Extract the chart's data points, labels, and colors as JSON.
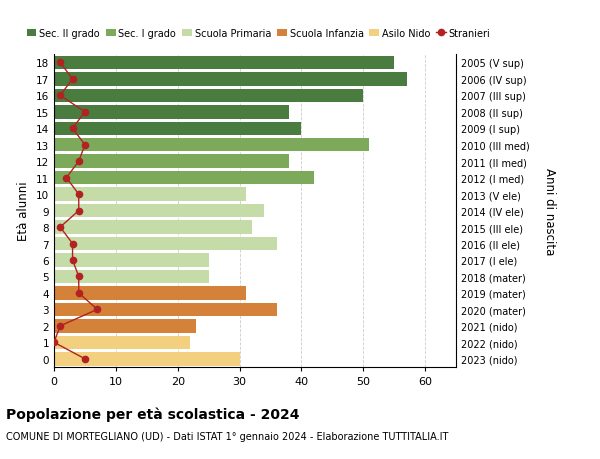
{
  "ages": [
    18,
    17,
    16,
    15,
    14,
    13,
    12,
    11,
    10,
    9,
    8,
    7,
    6,
    5,
    4,
    3,
    2,
    1,
    0
  ],
  "bar_values": [
    55,
    57,
    50,
    38,
    40,
    51,
    38,
    42,
    31,
    34,
    32,
    36,
    25,
    25,
    31,
    36,
    23,
    22,
    30
  ],
  "bar_colors": [
    "#4a7c3f",
    "#4a7c3f",
    "#4a7c3f",
    "#4a7c3f",
    "#4a7c3f",
    "#7daa5a",
    "#7daa5a",
    "#7daa5a",
    "#c5dba8",
    "#c5dba8",
    "#c5dba8",
    "#c5dba8",
    "#c5dba8",
    "#c5dba8",
    "#d4813a",
    "#d4813a",
    "#d4813a",
    "#f2d080",
    "#f2d080"
  ],
  "stranieri_values": [
    1,
    3,
    1,
    5,
    3,
    5,
    4,
    2,
    4,
    4,
    1,
    3,
    3,
    4,
    4,
    7,
    1,
    0,
    5
  ],
  "right_labels": [
    "2005 (V sup)",
    "2006 (IV sup)",
    "2007 (III sup)",
    "2008 (II sup)",
    "2009 (I sup)",
    "2010 (III med)",
    "2011 (II med)",
    "2012 (I med)",
    "2013 (V ele)",
    "2014 (IV ele)",
    "2015 (III ele)",
    "2016 (II ele)",
    "2017 (I ele)",
    "2018 (mater)",
    "2019 (mater)",
    "2020 (mater)",
    "2021 (nido)",
    "2022 (nido)",
    "2023 (nido)"
  ],
  "legend_labels": [
    "Sec. II grado",
    "Sec. I grado",
    "Scuola Primaria",
    "Scuola Infanzia",
    "Asilo Nido",
    "Stranieri"
  ],
  "legend_colors": [
    "#4a7c3f",
    "#7daa5a",
    "#c5dba8",
    "#d4813a",
    "#f2d080",
    "#b22222"
  ],
  "ylabel": "Età alunni",
  "right_ylabel": "Anni di nascita",
  "title": "Popolazione per età scolastica - 2024",
  "subtitle": "COMUNE DI MORTEGLIANO (UD) - Dati ISTAT 1° gennaio 2024 - Elaborazione TUTTITALIA.IT",
  "xlim": [
    0,
    65
  ],
  "ylim": [
    -0.5,
    18.5
  ],
  "xticks": [
    0,
    10,
    20,
    30,
    40,
    50,
    60
  ],
  "bg_color": "#ffffff",
  "grid_color": "#cccccc",
  "stranieri_color": "#b22222"
}
